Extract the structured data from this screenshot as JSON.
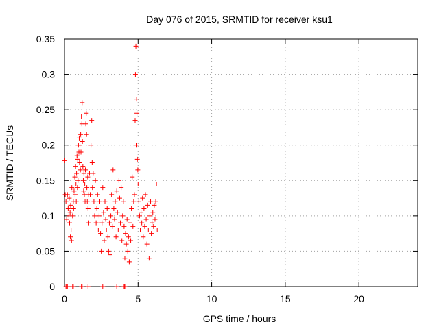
{
  "chart_data": {
    "type": "scatter",
    "title": "Day 076 of 2015, SRMTID for receiver ksu1",
    "xlabel": "GPS time / hours",
    "ylabel": "SRMTID / TECUs",
    "xlim": [
      0,
      24
    ],
    "ylim": [
      0,
      0.35
    ],
    "xticks": [
      0,
      5,
      10,
      15,
      20
    ],
    "xtick_labels": [
      "0",
      "5",
      "10",
      "15",
      "20"
    ],
    "yticks": [
      0,
      0.05,
      0.1,
      0.15,
      0.2,
      0.25,
      0.3,
      0.35
    ],
    "ytick_labels": [
      "0",
      "0.05",
      "0.1",
      "0.15",
      "0.2",
      "0.25",
      "0.3",
      "0.35"
    ],
    "grid": true,
    "marker": "plus",
    "series": [
      {
        "name": "SRMTID",
        "color": "#ff0000",
        "points": [
          [
            0.02,
            0.178
          ],
          [
            0.05,
            0.13
          ],
          [
            0.1,
            0.12
          ],
          [
            0.15,
            0.095
          ],
          [
            0.2,
            0.13
          ],
          [
            0.25,
            0.11
          ],
          [
            0.3,
            0.1
          ],
          [
            0.32,
            0.125
          ],
          [
            0.35,
            0.09
          ],
          [
            0.38,
            0.105
          ],
          [
            0.4,
            0.07
          ],
          [
            0.42,
            0.115
          ],
          [
            0.45,
            0.08
          ],
          [
            0.48,
            0.065
          ],
          [
            0.5,
            0.14
          ],
          [
            0.55,
            0.1
          ],
          [
            0.6,
            0.12
          ],
          [
            0.62,
            0.11
          ],
          [
            0.65,
            0.135
          ],
          [
            0.7,
            0.155
          ],
          [
            0.72,
            0.13
          ],
          [
            0.75,
            0.17
          ],
          [
            0.78,
            0.145
          ],
          [
            0.8,
            0.12
          ],
          [
            0.82,
            0.16
          ],
          [
            0.85,
            0.185
          ],
          [
            0.88,
            0.14
          ],
          [
            0.9,
            0.18
          ],
          [
            0.92,
            0.15
          ],
          [
            0.95,
            0.2
          ],
          [
            0.98,
            0.19
          ],
          [
            1.0,
            0.21
          ],
          [
            1.02,
            0.175
          ],
          [
            1.05,
            0.2
          ],
          [
            1.08,
            0.165
          ],
          [
            1.1,
            0.215
          ],
          [
            1.12,
            0.19
          ],
          [
            1.15,
            0.24
          ],
          [
            1.18,
            0.23
          ],
          [
            1.2,
            0.26
          ],
          [
            1.22,
            0.205
          ],
          [
            1.25,
            0.17
          ],
          [
            1.28,
            0.15
          ],
          [
            1.3,
            0.135
          ],
          [
            1.32,
            0.16
          ],
          [
            1.35,
            0.13
          ],
          [
            1.38,
            0.145
          ],
          [
            1.4,
            0.12
          ],
          [
            1.42,
            0.165
          ],
          [
            1.45,
            0.23
          ],
          [
            1.48,
            0.245
          ],
          [
            1.5,
            0.215
          ],
          [
            1.52,
            0.14
          ],
          [
            1.55,
            0.12
          ],
          [
            1.58,
            0.155
          ],
          [
            1.6,
            0.11
          ],
          [
            1.62,
            0.13
          ],
          [
            1.65,
            0.09
          ],
          [
            1.7,
            0.16
          ],
          [
            1.75,
            0.13
          ],
          [
            1.8,
            0.2
          ],
          [
            1.85,
            0.235
          ],
          [
            1.88,
            0.175
          ],
          [
            1.9,
            0.14
          ],
          [
            1.95,
            0.16
          ],
          [
            2.0,
            0.12
          ],
          [
            2.05,
            0.1
          ],
          [
            2.1,
            0.15
          ],
          [
            2.15,
            0.09
          ],
          [
            2.2,
            0.11
          ],
          [
            2.25,
            0.13
          ],
          [
            2.3,
            0.08
          ],
          [
            2.35,
            0.1
          ],
          [
            2.4,
            0.12
          ],
          [
            2.45,
            0.075
          ],
          [
            2.5,
            0.05
          ],
          [
            2.55,
            0.09
          ],
          [
            2.6,
            0.14
          ],
          [
            2.65,
            0.105
          ],
          [
            2.7,
            0.065
          ],
          [
            2.75,
            0.12
          ],
          [
            2.8,
            0.095
          ],
          [
            2.85,
            0.08
          ],
          [
            2.9,
            0.11
          ],
          [
            2.95,
            0.07
          ],
          [
            3.0,
            0.05
          ],
          [
            3.05,
            0.09
          ],
          [
            3.1,
            0.045
          ],
          [
            3.15,
            0.1
          ],
          [
            3.2,
            0.13
          ],
          [
            3.25,
            0.085
          ],
          [
            3.3,
            0.165
          ],
          [
            3.35,
            0.11
          ],
          [
            3.4,
            0.095
          ],
          [
            3.45,
            0.12
          ],
          [
            3.5,
            0.07
          ],
          [
            3.55,
            0.135
          ],
          [
            3.6,
            0.105
          ],
          [
            3.65,
            0.08
          ],
          [
            3.7,
            0.15
          ],
          [
            3.75,
            0.125
          ],
          [
            3.8,
            0.09
          ],
          [
            3.85,
            0.14
          ],
          [
            3.9,
            0.065
          ],
          [
            3.95,
            0.1
          ],
          [
            4.0,
            0.12
          ],
          [
            4.05,
            0.085
          ],
          [
            4.1,
            0.04
          ],
          [
            4.15,
            0.075
          ],
          [
            4.2,
            0.06
          ],
          [
            4.25,
            0.095
          ],
          [
            4.3,
            0.05
          ],
          [
            4.35,
            0.07
          ],
          [
            4.4,
            0.035
          ],
          [
            4.45,
            0.09
          ],
          [
            4.5,
            0.065
          ],
          [
            4.55,
            0.11
          ],
          [
            4.6,
            0.155
          ],
          [
            4.65,
            0.085
          ],
          [
            4.7,
            0.12
          ],
          [
            4.75,
            0.13
          ],
          [
            4.8,
            0.235
          ],
          [
            4.82,
            0.3
          ],
          [
            4.85,
            0.34
          ],
          [
            4.87,
            0.2
          ],
          [
            4.9,
            0.265
          ],
          [
            4.92,
            0.245
          ],
          [
            4.95,
            0.18
          ],
          [
            4.98,
            0.165
          ],
          [
            5.0,
            0.145
          ],
          [
            5.05,
            0.12
          ],
          [
            5.1,
            0.1
          ],
          [
            5.15,
            0.08
          ],
          [
            5.2,
            0.105
          ],
          [
            5.25,
            0.09
          ],
          [
            5.3,
            0.125
          ],
          [
            5.35,
            0.07
          ],
          [
            5.4,
            0.11
          ],
          [
            5.45,
            0.085
          ],
          [
            5.5,
            0.13
          ],
          [
            5.55,
            0.095
          ],
          [
            5.6,
            0.06
          ],
          [
            5.65,
            0.115
          ],
          [
            5.7,
            0.08
          ],
          [
            5.75,
            0.04
          ],
          [
            5.8,
            0.1
          ],
          [
            5.85,
            0.12
          ],
          [
            5.9,
            0.075
          ],
          [
            5.95,
            0.09
          ],
          [
            6.0,
            0.105
          ],
          [
            6.05,
            0.085
          ],
          [
            6.1,
            0.115
          ],
          [
            6.15,
            0.095
          ],
          [
            6.2,
            0.12
          ],
          [
            6.25,
            0.145
          ],
          [
            6.3,
            0.08
          ]
        ],
        "zero_points": [
          0.1,
          0.15,
          0.2,
          0.55,
          0.6,
          1.15,
          1.2,
          1.6,
          2.6,
          3.55,
          4.05,
          4.1
        ]
      }
    ]
  }
}
